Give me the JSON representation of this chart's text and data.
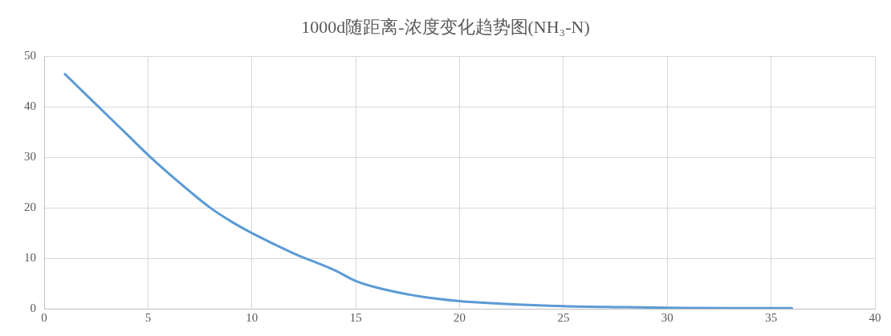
{
  "chart_data": {
    "type": "line",
    "title": "1000d随距离-浓度变化趋势图(NH₃-N)",
    "x": [
      1,
      2,
      3,
      4,
      5,
      6,
      7,
      8,
      9,
      10,
      12,
      14,
      15,
      16,
      18,
      20,
      22,
      25,
      28,
      30,
      33,
      36
    ],
    "series": [
      {
        "color": "#5b9bd5",
        "values": [
          46.5,
          42.5,
          38.5,
          34.5,
          30.5,
          26.8,
          23.3,
          20,
          17.3,
          15,
          11,
          7.6,
          5.5,
          4.2,
          2.5,
          1.5,
          1,
          0.5,
          0.3,
          0.2,
          0.1,
          0.1
        ]
      }
    ],
    "xlim": [
      0,
      40
    ],
    "xticks": [
      0,
      5,
      10,
      15,
      20,
      25,
      30,
      35,
      40
    ],
    "ylim": [
      0,
      50
    ],
    "yticks": [
      0,
      10,
      20,
      30,
      40,
      50
    ],
    "grid": true,
    "legend": false,
    "marker": "none",
    "line_style": "solid"
  }
}
